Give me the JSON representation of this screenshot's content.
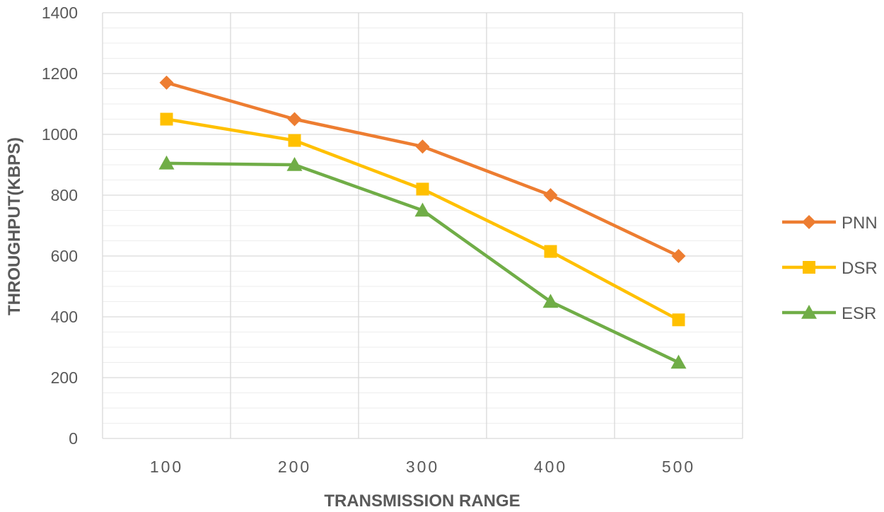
{
  "chart_data": {
    "type": "line",
    "title": "",
    "xlabel": "TRANSMISSION RANGE",
    "ylabel": "THROUGHPUT(KBPS)",
    "categories": [
      "100",
      "200",
      "300",
      "400",
      "500"
    ],
    "ylim": [
      0,
      1400
    ],
    "yticks": [
      0,
      200,
      400,
      600,
      800,
      1000,
      1200,
      1400
    ],
    "grid": true,
    "legend_position": "right",
    "series": [
      {
        "name": "PNN",
        "values": [
          1170,
          1050,
          960,
          800,
          600
        ],
        "color": "#ED7D31",
        "marker": "diamond"
      },
      {
        "name": "DSR",
        "values": [
          1050,
          980,
          820,
          615,
          390
        ],
        "color": "#FFC000",
        "marker": "square"
      },
      {
        "name": "ESR",
        "values": [
          905,
          900,
          750,
          450,
          250
        ],
        "color": "#70AD47",
        "marker": "triangle"
      }
    ]
  }
}
